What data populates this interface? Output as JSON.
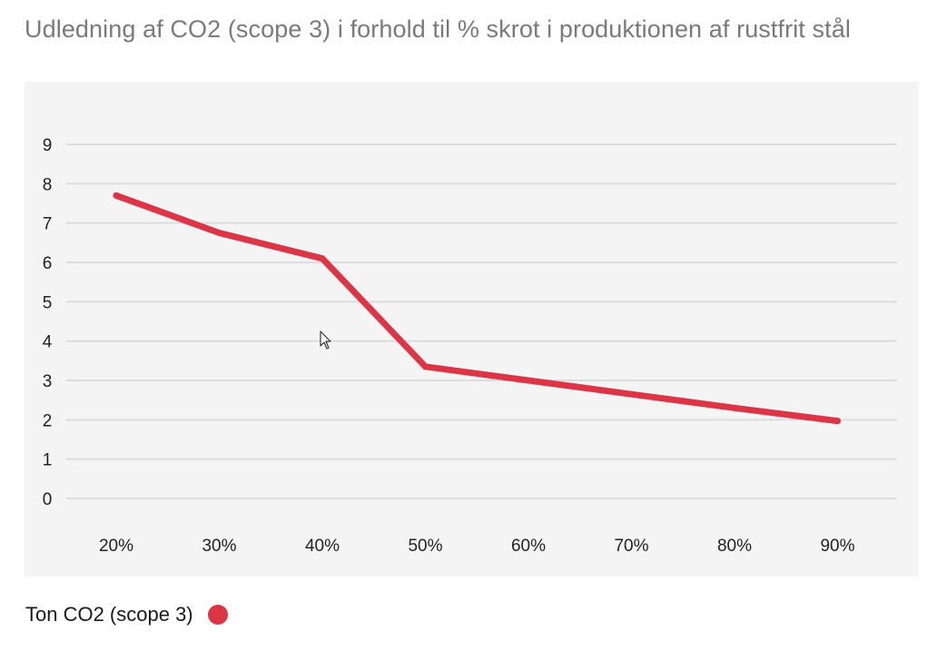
{
  "chart_data": {
    "type": "line",
    "title": "Udledning af CO2 (scope 3) i forhold til % skrot i produktionen af rustfrit stål",
    "xlabel": "",
    "ylabel": "",
    "categories": [
      "20%",
      "30%",
      "40%",
      "50%",
      "60%",
      "70%",
      "80%",
      "90%"
    ],
    "yticks": [
      "0",
      "1",
      "2",
      "3",
      "4",
      "5",
      "6",
      "7",
      "8",
      "9"
    ],
    "ylim": [
      0,
      9
    ],
    "grid": true,
    "legend_position": "bottom-left",
    "series": [
      {
        "name": "Ton CO2 (scope 3)",
        "color": "#dc3545",
        "values": [
          7.7,
          6.75,
          6.1,
          3.35,
          3.0,
          2.65,
          2.3,
          1.97
        ]
      }
    ]
  },
  "colors": {
    "background": "#ffffff",
    "plot_background": "#f4f4f4",
    "gridline": "#dcdcdc",
    "title_text": "#7a7a7a",
    "series_line": "#dc3545"
  },
  "icons": {
    "cursor": "mouse-pointer-icon"
  }
}
